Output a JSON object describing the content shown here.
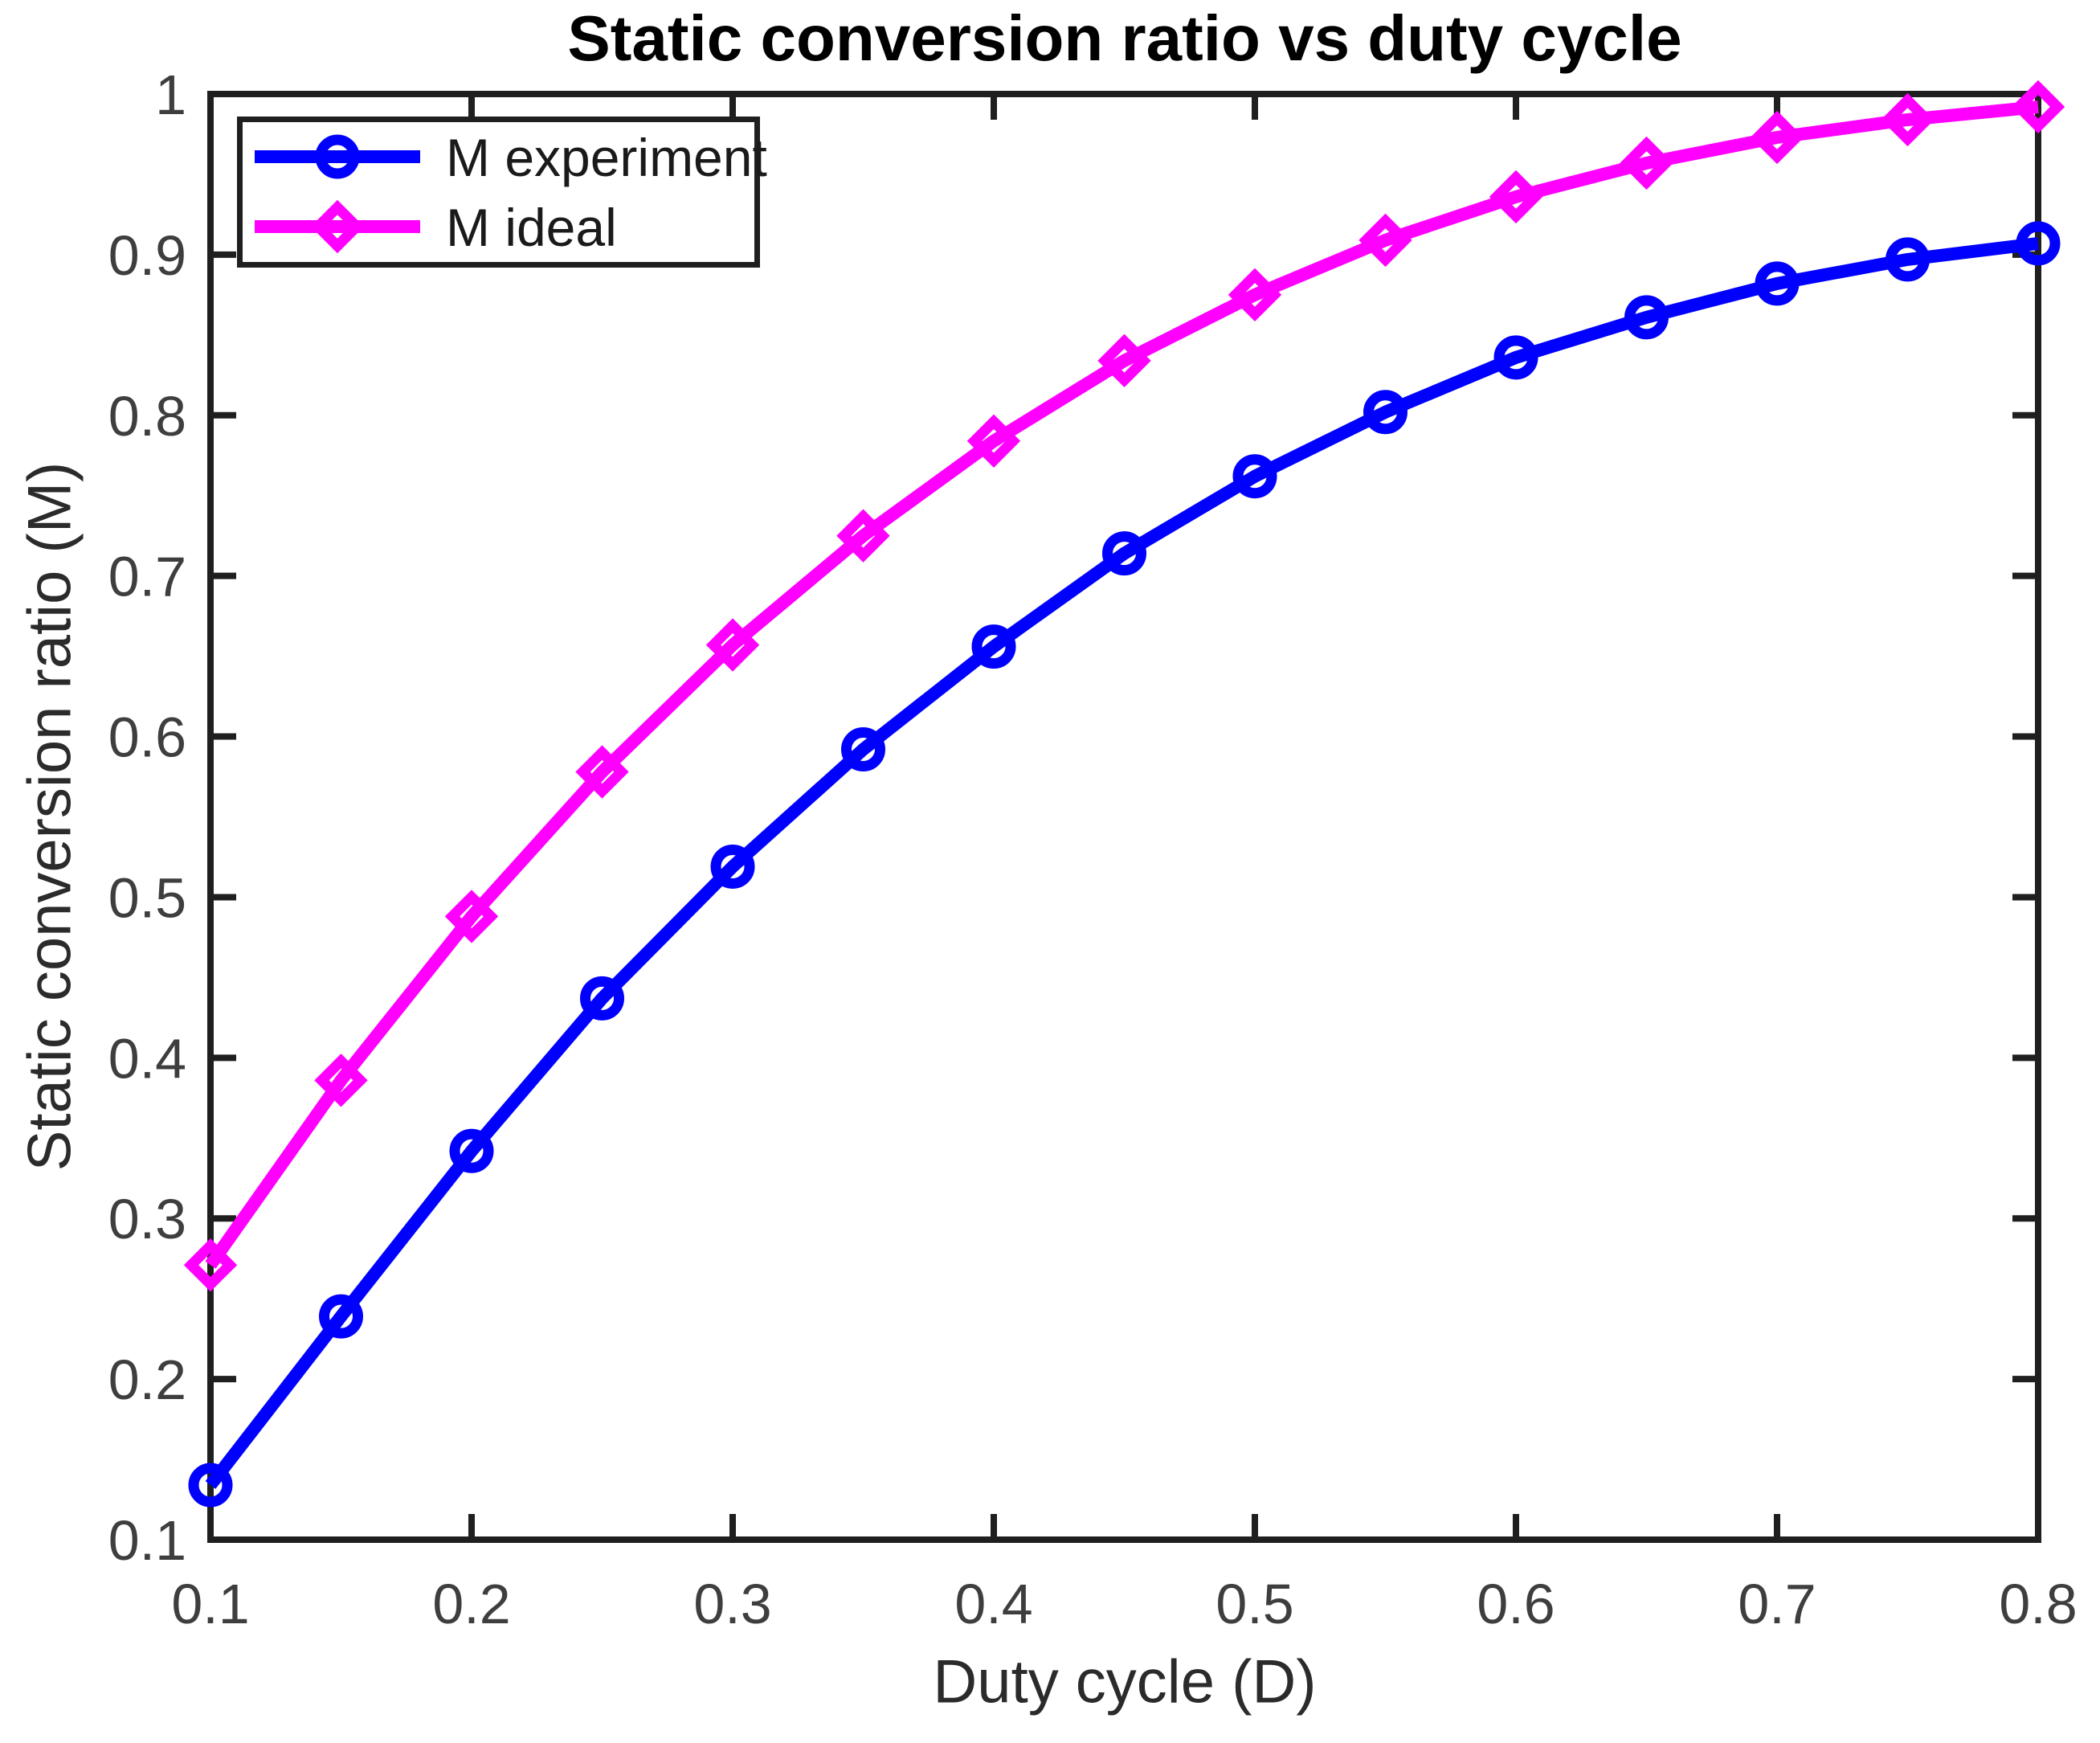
{
  "figure": {
    "title": "Static conversion ratio vs duty cycle",
    "xlabel": "Duty cycle (D)",
    "ylabel": "Static conversion ratio (M)",
    "background_color": "#FFFFFF",
    "axis_color": "#1F1F1F",
    "tick_label_color": "#3E3E3E"
  },
  "chart_data": {
    "type": "line",
    "x": [
      0.1,
      0.15,
      0.2,
      0.25,
      0.3,
      0.35,
      0.4,
      0.45,
      0.5,
      0.55,
      0.6,
      0.65,
      0.7,
      0.75,
      0.8
    ],
    "series": [
      {
        "name": "M experiment",
        "color": "#0000FF",
        "marker": "circle",
        "values": [
          0.134,
          0.239,
          0.342,
          0.437,
          0.519,
          0.592,
          0.656,
          0.714,
          0.762,
          0.802,
          0.836,
          0.861,
          0.882,
          0.897,
          0.907
        ]
      },
      {
        "name": "M ideal",
        "color": "#FF00FF",
        "marker": "diamond",
        "values": [
          0.271,
          0.386,
          0.488,
          0.578,
          0.657,
          0.725,
          0.784,
          0.834,
          0.875,
          0.909,
          0.936,
          0.957,
          0.973,
          0.984,
          0.992
        ]
      }
    ],
    "xlim": [
      0.1,
      0.8
    ],
    "ylim": [
      0.1,
      1.0
    ],
    "xticks": [
      0.1,
      0.2,
      0.3,
      0.4,
      0.5,
      0.6,
      0.7,
      0.8
    ],
    "xtick_labels": [
      "0.1",
      "0.2",
      "0.3",
      "0.4",
      "0.5",
      "0.6",
      "0.7",
      "0.8"
    ],
    "yticks": [
      0.1,
      0.2,
      0.3,
      0.4,
      0.5,
      0.6,
      0.7,
      0.8,
      0.9,
      1.0
    ],
    "ytick_labels": [
      "0.1",
      "0.2",
      "0.3",
      "0.4",
      "0.5",
      "0.6",
      "0.7",
      "0.8",
      "0.9",
      "1"
    ],
    "grid": false,
    "legend_position": "top-left"
  }
}
